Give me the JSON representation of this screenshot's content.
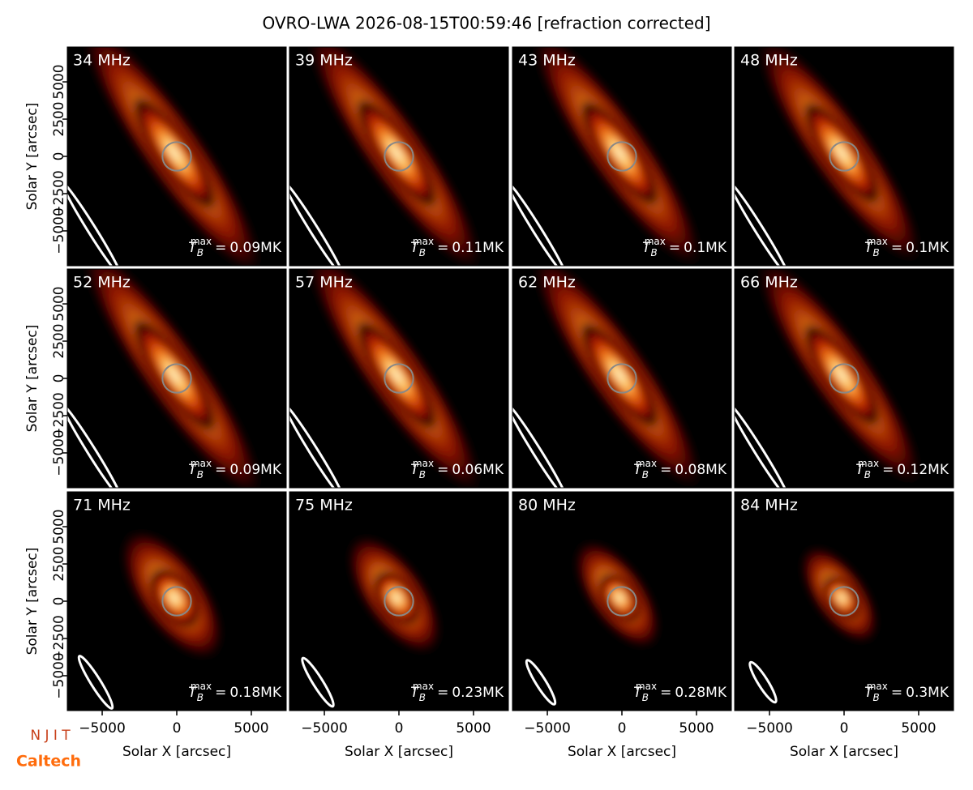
{
  "title": "OVRO-LWA 2026-08-15T00:59:46 [refraction corrected]",
  "tb_symbol": {
    "base": "T",
    "sub": "B",
    "sup": "max",
    "eq": "="
  },
  "logos": {
    "top": "N J I T",
    "bottom": "Caltech"
  },
  "chart_data": [
    {
      "type": "image",
      "title": "34 MHz",
      "annotation": "0.09MK",
      "xlim": [
        -7340,
        7340
      ],
      "ylim": [
        -7340,
        7340
      ],
      "ylabel": "Solar Y [arcsec]",
      "yticks": [
        {
          "value": -5000,
          "label": "−5000"
        },
        {
          "value": -2500,
          "label": "−2500"
        },
        0,
        2500,
        5000
      ]
    },
    {
      "type": "image",
      "title": "39 MHz",
      "annotation": "0.11MK",
      "xlim": [
        -7340,
        7340
      ],
      "ylim": [
        -7340,
        7340
      ]
    },
    {
      "type": "image",
      "title": "43 MHz",
      "annotation": "0.1MK",
      "xlim": [
        -7340,
        7340
      ],
      "ylim": [
        -7340,
        7340
      ]
    },
    {
      "type": "image",
      "title": "48 MHz",
      "annotation": "0.1MK",
      "xlim": [
        -7340,
        7340
      ],
      "ylim": [
        -7340,
        7340
      ]
    },
    {
      "type": "image",
      "title": "52 MHz",
      "annotation": "0.09MK",
      "xlim": [
        -7340,
        7340
      ],
      "ylim": [
        -7340,
        7340
      ],
      "ylabel": "Solar Y [arcsec]",
      "yticks": [
        {
          "value": -5000,
          "label": "−5000"
        },
        {
          "value": -2500,
          "label": "−2500"
        },
        0,
        2500,
        5000
      ]
    },
    {
      "type": "image",
      "title": "57 MHz",
      "annotation": "0.06MK",
      "xlim": [
        -7340,
        7340
      ],
      "ylim": [
        -7340,
        7340
      ]
    },
    {
      "type": "image",
      "title": "62 MHz",
      "annotation": "0.08MK",
      "xlim": [
        -7340,
        7340
      ],
      "ylim": [
        -7340,
        7340
      ]
    },
    {
      "type": "image",
      "title": "66 MHz",
      "annotation": "0.12MK",
      "xlim": [
        -7340,
        7340
      ],
      "ylim": [
        -7340,
        7340
      ]
    },
    {
      "type": "image",
      "title": "71 MHz",
      "annotation": "0.18MK",
      "xlim": [
        -7340,
        7340
      ],
      "ylim": [
        -7340,
        7340
      ],
      "ylabel": "Solar Y [arcsec]",
      "yticks": [
        {
          "value": -5000,
          "label": "−5000"
        },
        {
          "value": -2500,
          "label": "−2500"
        },
        0,
        2500,
        5000
      ],
      "xlabel": "Solar X [arcsec]",
      "xticks": [
        {
          "value": -5000,
          "label": "−5000"
        },
        0,
        5000
      ]
    },
    {
      "type": "image",
      "title": "75 MHz",
      "annotation": "0.23MK",
      "xlim": [
        -7340,
        7340
      ],
      "ylim": [
        -7340,
        7340
      ],
      "xlabel": "Solar X [arcsec]",
      "xticks": [
        {
          "value": -5000,
          "label": "−5000"
        },
        0,
        5000
      ]
    },
    {
      "type": "image",
      "title": "80 MHz",
      "annotation": "0.28MK",
      "xlim": [
        -7340,
        7340
      ],
      "ylim": [
        -7340,
        7340
      ],
      "xlabel": "Solar X [arcsec]",
      "xticks": [
        {
          "value": -5000,
          "label": "−5000"
        },
        0,
        5000
      ]
    },
    {
      "type": "image",
      "title": "84 MHz",
      "annotation": "0.3MK",
      "xlim": [
        -7340,
        7340
      ],
      "ylim": [
        -7340,
        7340
      ],
      "xlabel": "Solar X [arcsec]",
      "xticks": [
        {
          "value": -5000,
          "label": "−5000"
        },
        0,
        5000
      ]
    }
  ]
}
